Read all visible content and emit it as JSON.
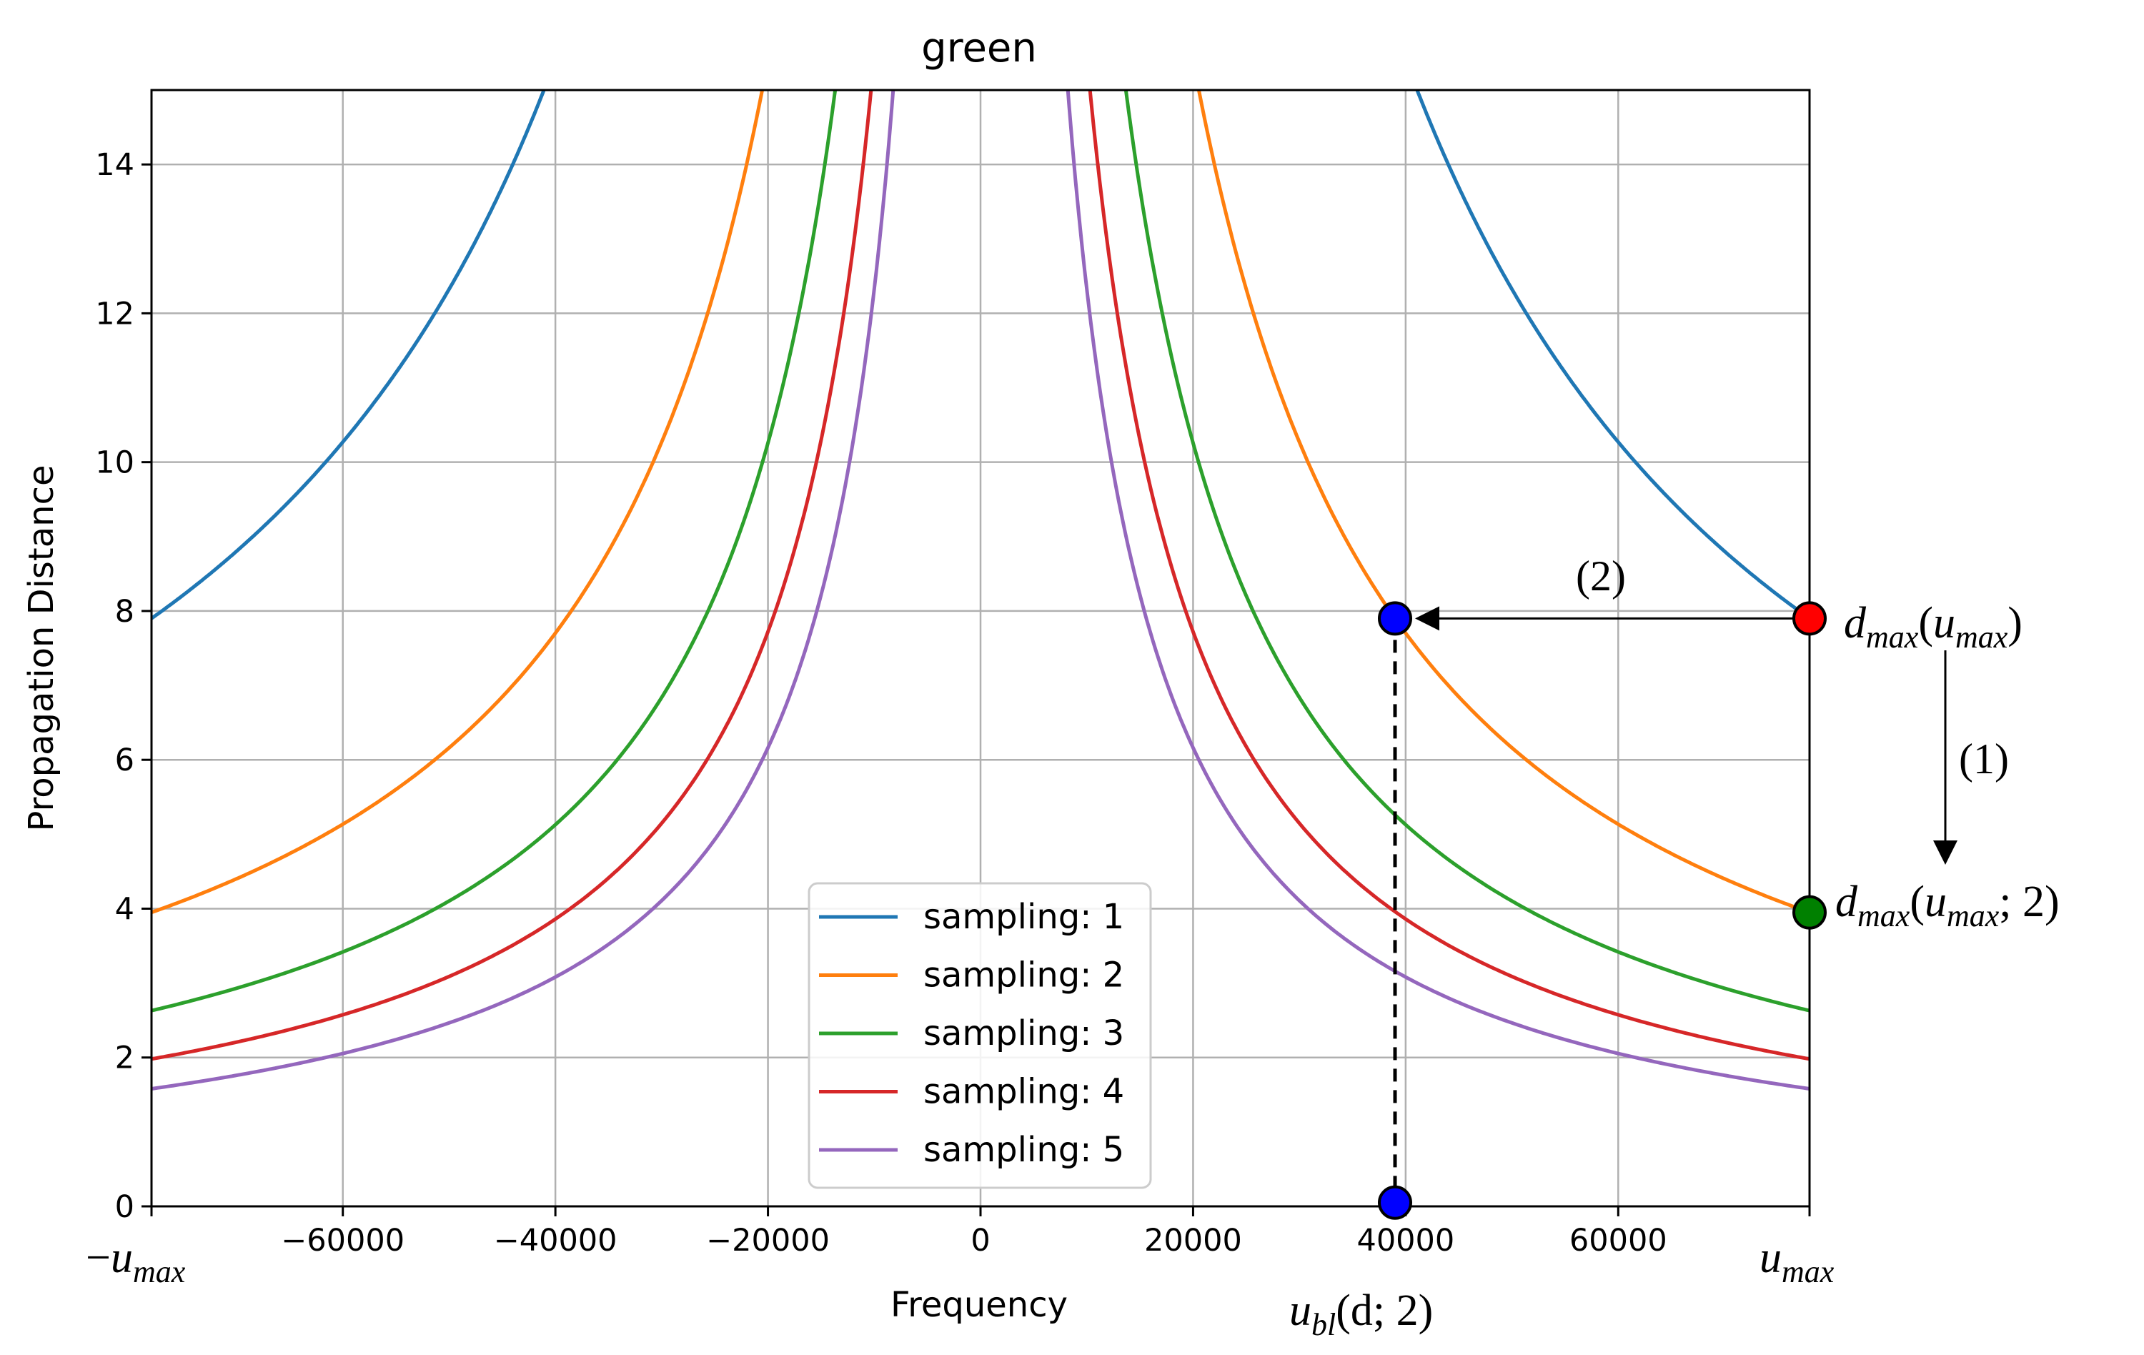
{
  "chart_data": {
    "type": "line",
    "title": "green",
    "xlabel": "Frequency",
    "ylabel": "Propagation Distance",
    "xlim": [
      -78000,
      78000
    ],
    "ylim": [
      0,
      15
    ],
    "grid": true,
    "legend_placement": "lower-center",
    "x_ticks": [
      {
        "value": -78000,
        "label": "",
        "math": "u_max_neg"
      },
      {
        "value": -60000,
        "label": "−60000"
      },
      {
        "value": -40000,
        "label": "−40000"
      },
      {
        "value": -20000,
        "label": "−20000"
      },
      {
        "value": 0,
        "label": "0"
      },
      {
        "value": 20000,
        "label": "20000"
      },
      {
        "value": 40000,
        "label": "40000"
      },
      {
        "value": 60000,
        "label": "60000"
      },
      {
        "value": 78000,
        "label": "",
        "math": "u_max"
      }
    ],
    "y_ticks": [
      {
        "value": 0,
        "label": "0"
      },
      {
        "value": 2,
        "label": "2"
      },
      {
        "value": 4,
        "label": "4"
      },
      {
        "value": 6,
        "label": "6"
      },
      {
        "value": 8,
        "label": "8"
      },
      {
        "value": 10,
        "label": "10"
      },
      {
        "value": 12,
        "label": "12"
      },
      {
        "value": 14,
        "label": "14"
      }
    ],
    "series": [
      {
        "name": "sampling: 1",
        "color": "#1f77b4",
        "d_at_umax": 7.9
      },
      {
        "name": "sampling: 2",
        "color": "#ff7f0e",
        "d_at_umax": 3.95
      },
      {
        "name": "sampling: 3",
        "color": "#2ca02c",
        "d_at_umax": 2.63
      },
      {
        "name": "sampling: 4",
        "color": "#d62728",
        "d_at_umax": 1.98
      },
      {
        "name": "sampling: 5",
        "color": "#9467bd",
        "d_at_umax": 1.58
      }
    ],
    "annotations": {
      "points": [
        {
          "name": "d-max-u-max-point",
          "x": 78000,
          "y": 7.9,
          "color": "#ff0000"
        },
        {
          "name": "d-max-u-max-2-point",
          "x": 78000,
          "y": 3.95,
          "color": "#008000"
        },
        {
          "name": "blue-curve-point",
          "x": 39000,
          "y": 7.9,
          "color": "#0000ff"
        },
        {
          "name": "blue-axis-point",
          "x": 39000,
          "y": 0.05,
          "color": "#0000ff"
        }
      ],
      "step1_label": "(1)",
      "step2_label": "(2)",
      "u_max_label": {
        "base": "u",
        "sub": "max",
        "prefix": "−"
      },
      "d_max_umax_label": {
        "base": "d",
        "sub": "max",
        "arg_base": "u",
        "arg_sub": "max",
        "suffix": ""
      },
      "d_max_umax2_label": {
        "base": "d",
        "sub": "max",
        "arg_base": "u",
        "arg_sub": "max",
        "suffix": "; 2"
      },
      "u_bl_label": {
        "base": "u",
        "sub": "bl",
        "args": "d; 2"
      }
    }
  }
}
